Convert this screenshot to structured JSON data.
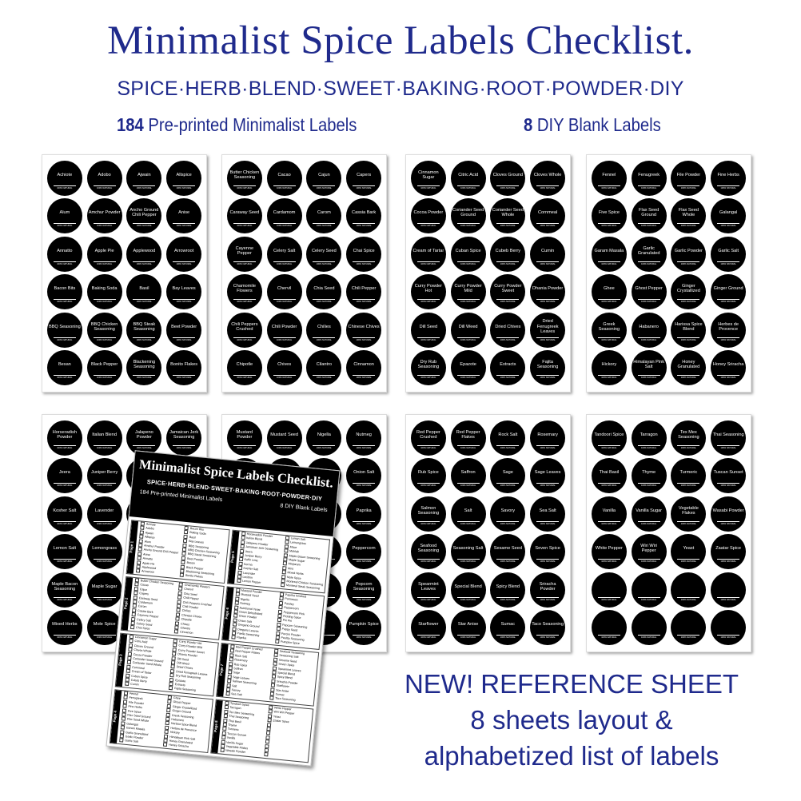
{
  "header": {
    "title": "Minimalist Spice Labels Checklist.",
    "categories": "SPICE·HERB·BLEND·SWEET·BAKING·ROOT·POWDER·DIY",
    "preprinted_count": "184",
    "preprinted_text": "Pre-printed Minimalist Labels",
    "blank_count": "8",
    "blank_text": "DIY Blank Labels"
  },
  "colors": {
    "brand": "#1f2a8c",
    "label_bg": "#000000",
    "label_text": "#ffffff"
  },
  "label_footer": "100% NATURAL",
  "sheets": [
    [
      "Achiote",
      "Adobo",
      "Ajwain",
      "Allspice",
      "Alum",
      "Amchur Powder",
      "Ancho Ground Chili Pepper",
      "Anise",
      "Annatto",
      "Apple Pie",
      "Applewood",
      "Arrowroot",
      "Bacon Bits",
      "Baking Soda",
      "Basil",
      "Bay Leaves",
      "BBQ Seasoning",
      "BBQ Chicken Seasoning",
      "BBQ Steak Seasoning",
      "Beet Powder",
      "Besan",
      "Black Pepper",
      "Blackening Seasoning",
      "Bonito Flakes"
    ],
    [
      "Butter Chicken Seasoning",
      "Cacao",
      "Cajun",
      "Capers",
      "Caraway Seed",
      "Cardamom",
      "Carom",
      "Cassia Bark",
      "Cayenne Pepper",
      "Celery Salt",
      "Celery Seed",
      "Chai Spice",
      "Chamomile Flowers",
      "Chervil",
      "Chia Seed",
      "Chili Pepper",
      "Chili Peppers Crushed",
      "Chili Powder",
      "Chilies",
      "Chinese Chives",
      "Chipotle",
      "Chives",
      "Cilantro",
      "Cinnamon"
    ],
    [
      "Cinnamon Sugar",
      "Citric Acid",
      "Cloves Ground",
      "Cloves Whole",
      "Cocoa Powder",
      "Coriander Seed Ground",
      "Coriander Seed Whole",
      "Cornmeal",
      "Cream of Tartar",
      "Cuban Spice",
      "Cubeb Berry",
      "Cumin",
      "Curry Powder Hot",
      "Curry Powder Mild",
      "Curry Powder Sweet",
      "Dhania Powder",
      "Dill Seed",
      "Dill Weed",
      "Dried Chives",
      "Dried Fenugreek Leaves",
      "Dry Rub Seasoning",
      "Epazote",
      "Extracts",
      "Fajita Seasoning"
    ],
    [
      "Fennel",
      "Fenugreek",
      "File Powder",
      "Fine Herbs",
      "Five Spice",
      "Flax Seed Ground",
      "Flax Seed Whole",
      "Galangal",
      "Garam Masala",
      "Garlic Granulated",
      "Garlic Powder",
      "Garlic Salt",
      "Ghee",
      "Ghost Pepper",
      "Ginger Crystallized",
      "Ginger Ground",
      "Greek Seasoning",
      "Habanero",
      "Harissa Spice Blend",
      "Herbes de Provence",
      "Hickory",
      "Himalayan Pink Salt",
      "Honey Granulated",
      "Honey Sriracha"
    ],
    [
      "Horseradish Powder",
      "Italian Blend",
      "Jalapeno Powder",
      "Jamaican Jerk Seasoning",
      "Jeera",
      "Juniper Berry",
      "Kaffir Lime",
      "Korma",
      "Kosher Salt",
      "Lavender",
      "Lecithin",
      "Lemon Pepper",
      "Lemon Salt",
      "Lemongrass",
      "Mace",
      "Mahlab",
      "Maple Bacon Seasoning",
      "Maple Sugar",
      "Marjoram",
      "Mint",
      "Mixed Herbs",
      "Mole Spice",
      "Montreal Chicken Seasoning",
      "Montreal Steak Seasoning"
    ],
    [
      "Mustard Powder",
      "Mustard Seed",
      "Nigella",
      "Nutmeg",
      "Nutritional Yeast",
      "Onion Dehydrated",
      "Onion Powder",
      "Onion Salt",
      "Oregano Ground",
      "Oregano Leaves",
      "Paella Seasoning",
      "Paprika",
      "Paprika Smoked",
      "Parmesan",
      "Parsley",
      "Peppercorn",
      "Peppercorn Pink",
      "Pickling Spice",
      "Piri Piri",
      "Popcorn Seasoning",
      "Poppy Seed",
      "Porcini Powder",
      "Poultry Seasoning",
      "Pumpkin Spice"
    ],
    [
      "Red Pepper Crushed",
      "Red Pepper Flakes",
      "Rock Salt",
      "Rosemary",
      "Rub Spice",
      "Saffron",
      "Sage",
      "Sage Leaves",
      "Salmon Seasoning",
      "Salt",
      "Savory",
      "Sea Salt",
      "Seafood Seasoning",
      "Seasoning Salt",
      "Sesame Seed",
      "Seven Spice",
      "Spearmint Leaves",
      "Special Blend",
      "Spicy Blend",
      "Sriracha Powder",
      "Starflower",
      "Star Anise",
      "Sumac",
      "Taco Seasoning"
    ],
    [
      "Tandoori Spice",
      "Tarragon",
      "Tex Mex Seasoning",
      "Thai Seasoning",
      "Thai Basil",
      "Thyme",
      "Turmeric",
      "Tuscan Sunset",
      "Vanilla",
      "Vanilla Sugar",
      "Vegetable Flakes",
      "Wasabi Powder",
      "White Pepper",
      "Wiri Wiri Pepper",
      "Yeast",
      "Zaatar Spice",
      "",
      "",
      "",
      "",
      "",
      "",
      "",
      ""
    ]
  ],
  "reference_sheet": {
    "title": "Minimalist Spice Labels Checklist.",
    "categories": "SPICE·HERB·BLEND·SWEET·BAKING·ROOT·POWDER·DIY",
    "preprinted": "184 Pre-printed Minimalist Labels",
    "blank": "8 DIY Blank Labels",
    "pages": [
      "Page 1",
      "Page 2",
      "Page 3",
      "Page 4",
      "Page 5",
      "Page 6",
      "Page 7",
      "Page 8"
    ]
  },
  "promo": {
    "line1": "NEW! REFERENCE SHEET",
    "line2": "8 sheets layout &",
    "line3": "alphabetized list of labels"
  }
}
